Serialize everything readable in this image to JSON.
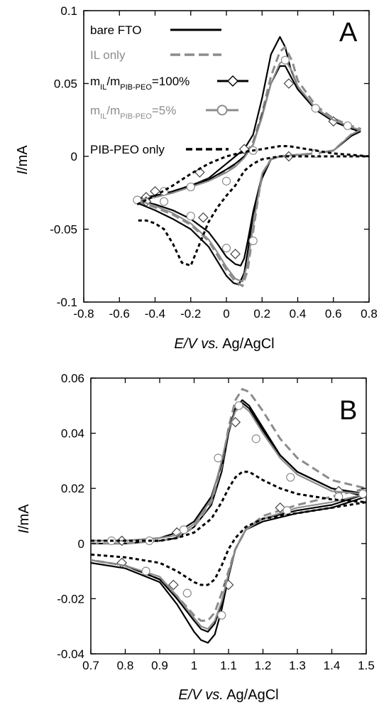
{
  "chart_data": [
    {
      "type": "line",
      "panel_label": "A",
      "xlabel": {
        "italic": "E/V",
        "italic2": "vs.",
        "plain": " Ag/AgCl"
      },
      "ylabel": {
        "italic": "I",
        "plain": "/mA"
      },
      "xlim": [
        -0.8,
        0.8
      ],
      "ylim": [
        -0.1,
        0.1
      ],
      "xticks": [
        "-0.8",
        "-0.6",
        "-0.4",
        "-0.2",
        "0",
        "0.2",
        "0.4",
        "0.6",
        "0.8"
      ],
      "yticks": [
        "-0.1",
        "-0.05",
        "0",
        "0.05",
        "0.1"
      ],
      "legend_position": "top-left",
      "legend": [
        {
          "label": "bare FTO",
          "color": "#000000",
          "dash": "solid",
          "marker": "none"
        },
        {
          "label": "IL only",
          "color": "#8c8c8c",
          "dash": "dash",
          "marker": "none"
        },
        {
          "label_parts": [
            "m",
            "IL",
            "/m",
            "PIB-PEO",
            "=100%"
          ],
          "color": "#000000",
          "dash": "solid",
          "marker": "diamond"
        },
        {
          "label_parts": [
            "m",
            "IL",
            "/m",
            "PIB-PEO",
            "=5%"
          ],
          "color": "#8c8c8c",
          "dash": "solid",
          "marker": "circle"
        },
        {
          "label": "PIB-PEO only",
          "color": "#000000",
          "dash": "dash",
          "marker": "none"
        }
      ],
      "series": [
        {
          "color": "#000000",
          "dash": "solid",
          "marker": "none",
          "x": [
            -0.5,
            -0.4,
            -0.3,
            -0.2,
            -0.1,
            0.0,
            0.05,
            0.1,
            0.15,
            0.2,
            0.25,
            0.3,
            0.33,
            0.36,
            0.4,
            0.5,
            0.6,
            0.7,
            0.75,
            0.7,
            0.6,
            0.5,
            0.4,
            0.3,
            0.25,
            0.2,
            0.15,
            0.12,
            0.1,
            0.07,
            0.04,
            0.0,
            -0.05,
            -0.1,
            -0.2,
            -0.3,
            -0.4,
            -0.5
          ],
          "y": [
            -0.03,
            -0.028,
            -0.025,
            -0.02,
            -0.015,
            -0.005,
            0.0,
            0.005,
            0.015,
            0.04,
            0.07,
            0.082,
            0.075,
            0.06,
            0.048,
            0.033,
            0.025,
            0.02,
            0.018,
            0.014,
            0.004,
            0.002,
            0.001,
            0.0,
            -0.002,
            -0.015,
            -0.04,
            -0.065,
            -0.08,
            -0.088,
            -0.087,
            -0.082,
            -0.072,
            -0.062,
            -0.05,
            -0.043,
            -0.037,
            -0.032
          ]
        },
        {
          "color": "#8c8c8c",
          "dash": "dash",
          "marker": "none",
          "x": [
            -0.5,
            -0.4,
            -0.3,
            -0.2,
            -0.1,
            0.0,
            0.05,
            0.1,
            0.15,
            0.2,
            0.25,
            0.3,
            0.33,
            0.37,
            0.4,
            0.5,
            0.6,
            0.7,
            0.75,
            0.7,
            0.6,
            0.5,
            0.4,
            0.3,
            0.25,
            0.2,
            0.17,
            0.14,
            0.12,
            0.09,
            0.05,
            0.0,
            -0.05,
            -0.1,
            -0.2,
            -0.3,
            -0.4,
            -0.5
          ],
          "y": [
            -0.029,
            -0.027,
            -0.024,
            -0.02,
            -0.016,
            -0.01,
            -0.006,
            0.0,
            0.01,
            0.03,
            0.055,
            0.072,
            0.075,
            0.065,
            0.052,
            0.035,
            0.026,
            0.021,
            0.019,
            0.015,
            0.004,
            0.002,
            0.001,
            0.0,
            -0.002,
            -0.012,
            -0.035,
            -0.06,
            -0.078,
            -0.089,
            -0.086,
            -0.078,
            -0.068,
            -0.058,
            -0.047,
            -0.04,
            -0.035,
            -0.031
          ]
        },
        {
          "color": "#000000",
          "dash": "solid",
          "marker": "diamond",
          "x": [
            -0.5,
            -0.4,
            -0.3,
            -0.2,
            -0.1,
            0.0,
            0.05,
            0.1,
            0.15,
            0.2,
            0.25,
            0.3,
            0.33,
            0.36,
            0.4,
            0.5,
            0.6,
            0.7,
            0.75,
            0.7,
            0.6,
            0.5,
            0.4,
            0.3,
            0.25,
            0.2,
            0.15,
            0.12,
            0.1,
            0.08,
            0.05,
            0.0,
            -0.05,
            -0.1,
            -0.2,
            -0.3,
            -0.4,
            -0.5
          ],
          "y": [
            -0.029,
            -0.027,
            -0.024,
            -0.02,
            -0.016,
            -0.009,
            -0.005,
            0.0,
            0.008,
            0.028,
            0.05,
            0.062,
            0.062,
            0.055,
            0.046,
            0.032,
            0.024,
            0.019,
            0.017,
            0.014,
            0.004,
            0.002,
            0.001,
            0.0,
            -0.002,
            -0.013,
            -0.038,
            -0.058,
            -0.07,
            -0.075,
            -0.074,
            -0.069,
            -0.06,
            -0.052,
            -0.043,
            -0.037,
            -0.033,
            -0.03
          ],
          "markers_x": [
            -0.45,
            -0.4,
            -0.15,
            0.1,
            0.35,
            0.6,
            0.35,
            0.05,
            -0.13,
            -0.45
          ],
          "markers_y": [
            -0.028,
            -0.024,
            -0.011,
            0.005,
            0.05,
            0.024,
            0.0,
            -0.067,
            -0.042,
            -0.031
          ]
        },
        {
          "color": "#8c8c8c",
          "dash": "solid",
          "marker": "circle",
          "x": [
            -0.5,
            -0.4,
            -0.3,
            -0.2,
            -0.1,
            0.0,
            0.05,
            0.1,
            0.15,
            0.2,
            0.25,
            0.3,
            0.33,
            0.37,
            0.4,
            0.5,
            0.6,
            0.7,
            0.75,
            0.7,
            0.6,
            0.5,
            0.4,
            0.3,
            0.25,
            0.2,
            0.17,
            0.14,
            0.12,
            0.09,
            0.05,
            0.0,
            -0.05,
            -0.1,
            -0.2,
            -0.3,
            -0.4,
            -0.5
          ],
          "y": [
            -0.03,
            -0.028,
            -0.025,
            -0.021,
            -0.017,
            -0.011,
            -0.007,
            -0.001,
            0.008,
            0.027,
            0.05,
            0.064,
            0.066,
            0.058,
            0.048,
            0.033,
            0.025,
            0.02,
            0.018,
            0.015,
            0.004,
            0.002,
            0.001,
            0.0,
            -0.002,
            -0.012,
            -0.033,
            -0.056,
            -0.073,
            -0.086,
            -0.084,
            -0.076,
            -0.066,
            -0.057,
            -0.046,
            -0.039,
            -0.034,
            -0.03
          ],
          "markers_x": [
            -0.5,
            -0.35,
            -0.2,
            0.0,
            0.15,
            0.33,
            0.5,
            0.68,
            0.5,
            0.15,
            0.0,
            -0.2,
            -0.35
          ],
          "markers_y": [
            -0.03,
            -0.024,
            -0.021,
            -0.017,
            0.004,
            0.066,
            0.033,
            0.021,
            0.002,
            -0.058,
            -0.063,
            -0.041,
            -0.031
          ]
        },
        {
          "color": "#000000",
          "dash": "dash",
          "marker": "none",
          "x": [
            -0.5,
            -0.4,
            -0.3,
            -0.2,
            -0.1,
            0.0,
            0.1,
            0.15,
            0.2,
            0.25,
            0.3,
            0.35,
            0.4,
            0.5,
            0.6,
            0.7,
            0.8,
            0.7,
            0.6,
            0.5,
            0.4,
            0.3,
            0.2,
            0.15,
            0.1,
            0.05,
            0.0,
            -0.05,
            -0.1,
            -0.15,
            -0.2,
            -0.25,
            -0.3,
            -0.35,
            -0.4,
            -0.45,
            -0.5
          ],
          "y": [
            -0.033,
            -0.027,
            -0.02,
            -0.012,
            -0.005,
            0.0,
            0.003,
            0.004,
            0.005,
            0.006,
            0.007,
            0.007,
            0.006,
            0.004,
            0.002,
            0.001,
            0.0,
            0.0,
            0.0,
            0.0,
            0.0,
            0.0,
            -0.002,
            -0.005,
            -0.01,
            -0.02,
            -0.027,
            -0.035,
            -0.045,
            -0.06,
            -0.075,
            -0.073,
            -0.06,
            -0.05,
            -0.046,
            -0.044,
            -0.044
          ]
        }
      ]
    },
    {
      "type": "line",
      "panel_label": "B",
      "xlabel": {
        "italic": "E/V",
        "italic2": "vs.",
        "plain": " Ag/AgCl"
      },
      "ylabel": {
        "italic": "I",
        "plain": "/mA"
      },
      "xlim": [
        0.7,
        1.5
      ],
      "ylim": [
        -0.04,
        0.06
      ],
      "xticks": [
        "0.7",
        "0.8",
        "0.9",
        "1",
        "1.1",
        "1.2",
        "1.3",
        "1.4",
        "1.5"
      ],
      "yticks": [
        "-0.04",
        "-0.02",
        "0",
        "0.02",
        "0.04",
        "0.06"
      ],
      "series": [
        {
          "color": "#000000",
          "dash": "solid",
          "marker": "none",
          "x": [
            0.7,
            0.8,
            0.9,
            0.95,
            1.0,
            1.05,
            1.08,
            1.1,
            1.12,
            1.14,
            1.16,
            1.2,
            1.25,
            1.3,
            1.4,
            1.5,
            1.4,
            1.3,
            1.2,
            1.15,
            1.12,
            1.1,
            1.08,
            1.06,
            1.04,
            1.02,
            1.0,
            0.95,
            0.9,
            0.8,
            0.7
          ],
          "y": [
            0.0,
            0.0,
            0.001,
            0.002,
            0.006,
            0.014,
            0.026,
            0.04,
            0.049,
            0.052,
            0.05,
            0.042,
            0.032,
            0.026,
            0.02,
            0.017,
            0.013,
            0.011,
            0.008,
            0.005,
            -0.002,
            -0.012,
            -0.024,
            -0.033,
            -0.036,
            -0.035,
            -0.032,
            -0.022,
            -0.014,
            -0.009,
            -0.007
          ]
        },
        {
          "color": "#8c8c8c",
          "dash": "dash",
          "marker": "none",
          "x": [
            0.7,
            0.8,
            0.9,
            0.95,
            1.0,
            1.05,
            1.08,
            1.1,
            1.12,
            1.14,
            1.16,
            1.2,
            1.25,
            1.3,
            1.4,
            1.5,
            1.4,
            1.3,
            1.2,
            1.15,
            1.12,
            1.1,
            1.08,
            1.06,
            1.04,
            1.02,
            1.0,
            0.95,
            0.9,
            0.8,
            0.7
          ],
          "y": [
            0.0,
            0.0,
            0.001,
            0.002,
            0.006,
            0.015,
            0.028,
            0.042,
            0.052,
            0.056,
            0.055,
            0.048,
            0.038,
            0.031,
            0.023,
            0.02,
            0.017,
            0.014,
            0.01,
            0.005,
            -0.002,
            -0.01,
            -0.018,
            -0.025,
            -0.028,
            -0.028,
            -0.026,
            -0.019,
            -0.013,
            -0.008,
            -0.006
          ]
        },
        {
          "color": "#000000",
          "dash": "solid",
          "marker": "diamond",
          "x": [
            0.7,
            0.8,
            0.9,
            0.95,
            1.0,
            1.05,
            1.08,
            1.1,
            1.12,
            1.14,
            1.16,
            1.2,
            1.25,
            1.3,
            1.4,
            1.5,
            1.4,
            1.3,
            1.2,
            1.15,
            1.12,
            1.1,
            1.08,
            1.06,
            1.04,
            1.02,
            1.0,
            0.95,
            0.9,
            0.8,
            0.7
          ],
          "y": [
            0.001,
            0.001,
            0.002,
            0.004,
            0.008,
            0.017,
            0.029,
            0.041,
            0.049,
            0.051,
            0.049,
            0.041,
            0.032,
            0.026,
            0.02,
            0.018,
            0.014,
            0.012,
            0.009,
            0.005,
            -0.002,
            -0.011,
            -0.022,
            -0.029,
            -0.032,
            -0.031,
            -0.028,
            -0.02,
            -0.013,
            -0.008,
            -0.006
          ],
          "markers_x": [
            0.79,
            0.95,
            1.12,
            1.42,
            1.25,
            1.1,
            0.94,
            0.79
          ],
          "markers_y": [
            0.001,
            0.004,
            0.044,
            0.019,
            0.013,
            -0.015,
            -0.015,
            -0.007
          ]
        },
        {
          "color": "#8c8c8c",
          "dash": "solid",
          "marker": "circle",
          "x": [
            0.7,
            0.8,
            0.9,
            0.95,
            1.0,
            1.05,
            1.08,
            1.1,
            1.12,
            1.14,
            1.16,
            1.2,
            1.25,
            1.3,
            1.4,
            1.5,
            1.4,
            1.3,
            1.2,
            1.15,
            1.12,
            1.1,
            1.08,
            1.06,
            1.04,
            1.02,
            1.0,
            0.95,
            0.9,
            0.8,
            0.7
          ],
          "y": [
            0.001,
            0.001,
            0.002,
            0.003,
            0.007,
            0.016,
            0.03,
            0.041,
            0.048,
            0.05,
            0.048,
            0.04,
            0.031,
            0.025,
            0.019,
            0.018,
            0.015,
            0.013,
            0.009,
            0.005,
            -0.002,
            -0.011,
            -0.021,
            -0.028,
            -0.031,
            -0.03,
            -0.027,
            -0.019,
            -0.012,
            -0.008,
            -0.006
          ],
          "markers_x": [
            0.76,
            0.87,
            0.97,
            1.07,
            1.13,
            1.18,
            1.28,
            1.42,
            1.49,
            1.27,
            1.08,
            0.98,
            0.86
          ],
          "markers_y": [
            0.001,
            0.001,
            0.005,
            0.031,
            0.05,
            0.038,
            0.024,
            0.017,
            0.018,
            0.012,
            -0.026,
            -0.018,
            -0.01
          ]
        },
        {
          "color": "#000000",
          "dash": "dash",
          "marker": "none",
          "x": [
            0.7,
            0.8,
            0.9,
            0.95,
            1.0,
            1.05,
            1.08,
            1.1,
            1.12,
            1.14,
            1.16,
            1.2,
            1.25,
            1.3,
            1.4,
            1.5,
            1.4,
            1.3,
            1.2,
            1.15,
            1.12,
            1.1,
            1.08,
            1.06,
            1.04,
            1.02,
            1.0,
            0.95,
            0.9,
            0.8,
            0.7
          ],
          "y": [
            0.001,
            0.001,
            0.001,
            0.002,
            0.004,
            0.009,
            0.015,
            0.02,
            0.024,
            0.026,
            0.026,
            0.023,
            0.02,
            0.018,
            0.016,
            0.015,
            0.013,
            0.011,
            0.009,
            0.006,
            0.002,
            -0.002,
            -0.008,
            -0.013,
            -0.015,
            -0.015,
            -0.014,
            -0.01,
            -0.007,
            -0.005,
            -0.004
          ]
        }
      ]
    }
  ]
}
